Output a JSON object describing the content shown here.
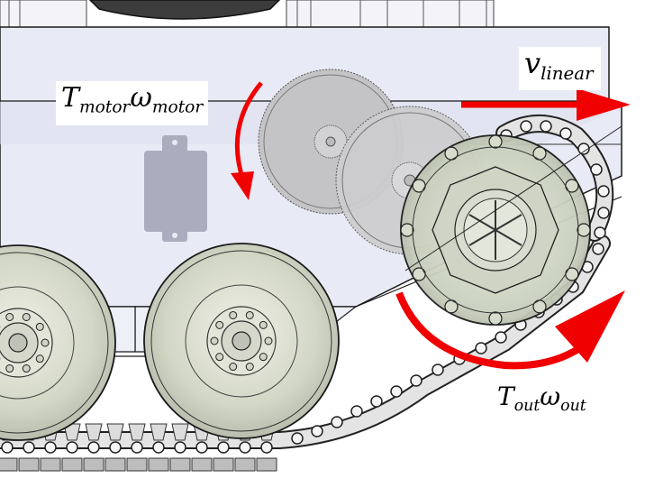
{
  "labels": {
    "motor": {
      "symbol_T": "T",
      "sub_T": "motor",
      "symbol_w": "ω",
      "sub_w": "motor"
    },
    "linear": {
      "symbol": "v",
      "sub": "linear"
    },
    "output": {
      "symbol_T": "T",
      "sub_T": "out",
      "symbol_w": "ω",
      "sub_w": "out"
    }
  },
  "colors": {
    "arrow": "#f00000",
    "hull": "#e6e8f4",
    "hull_dark": "#d3d6e6",
    "gear": "#c8c8c8",
    "wheel": "#d9dcd0",
    "track": "#e2e2e2",
    "outline": "#1a1a1a"
  }
}
